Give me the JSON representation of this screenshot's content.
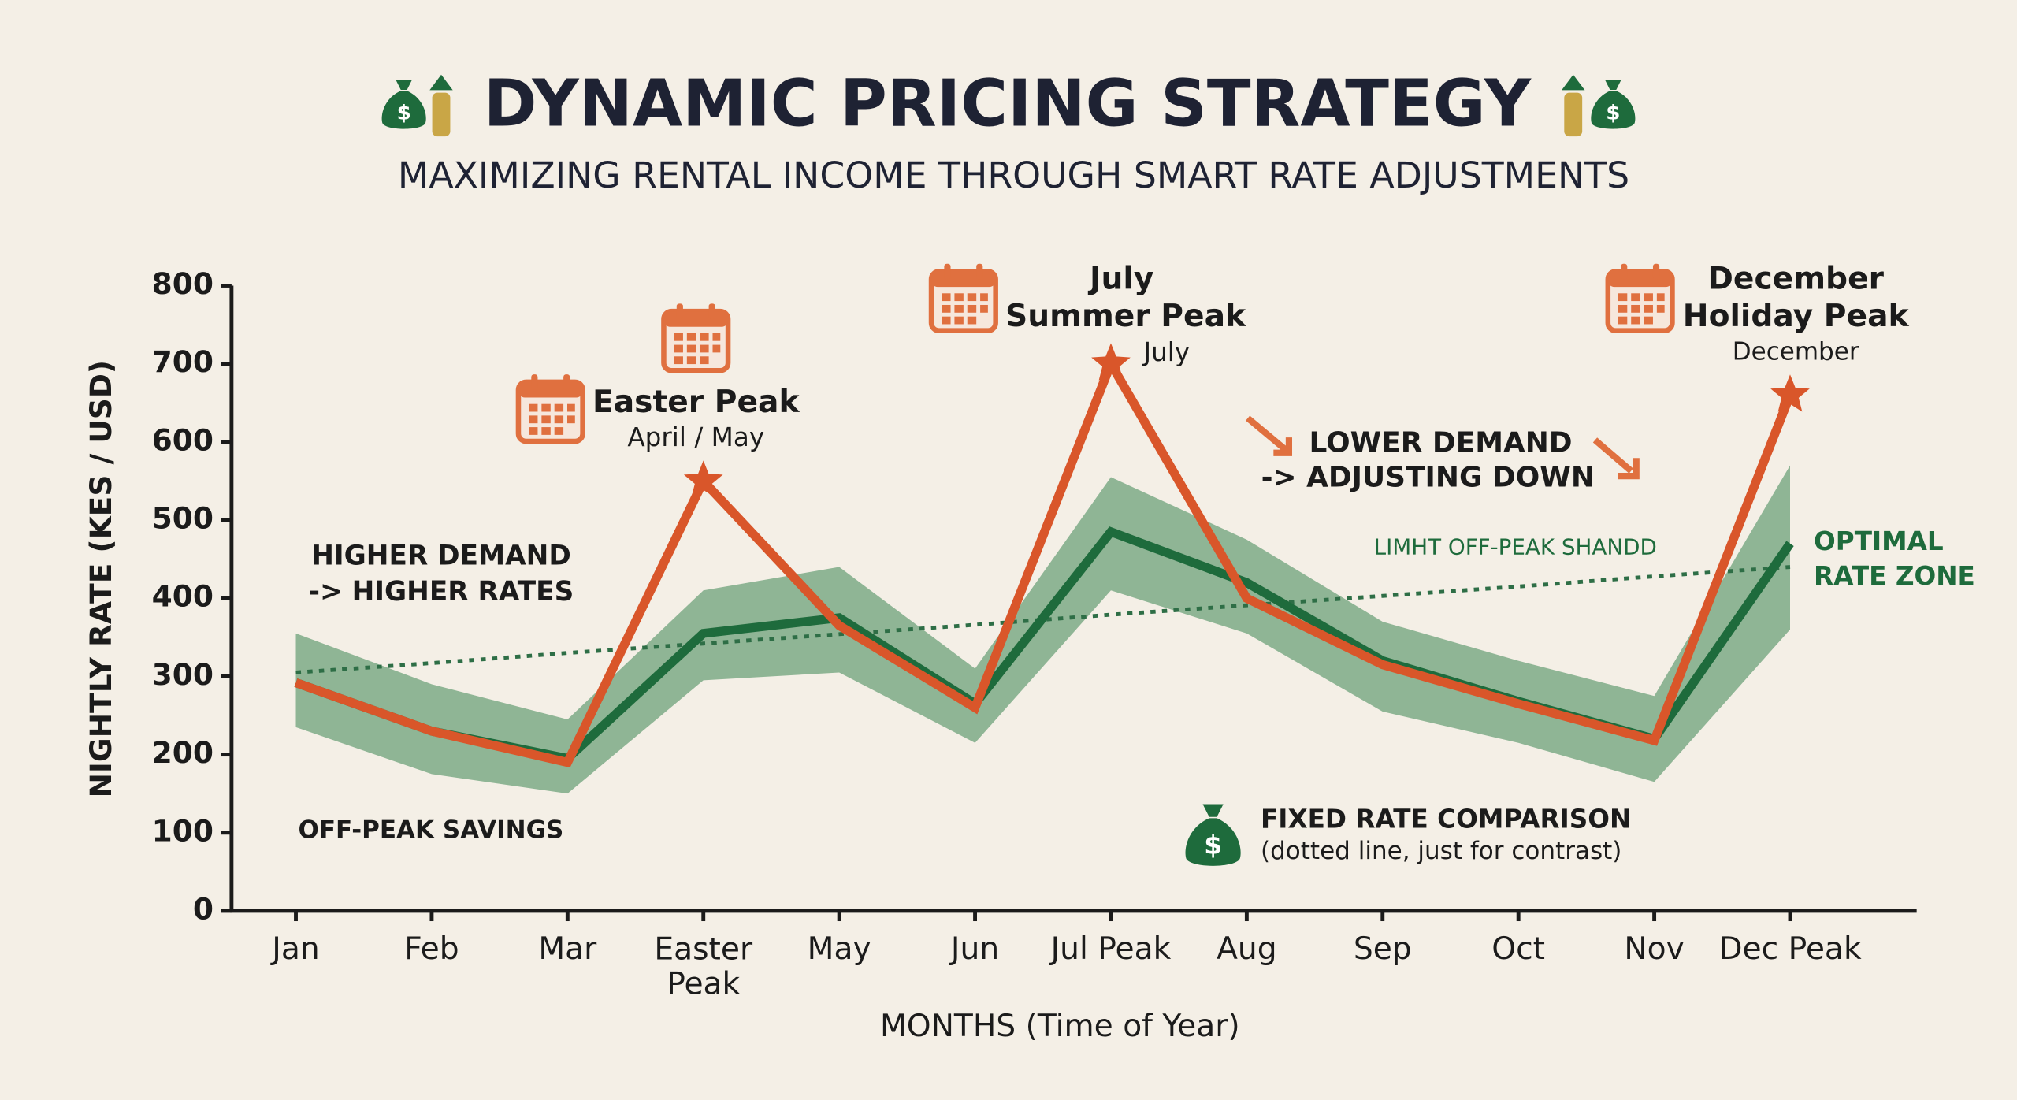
{
  "chart_data": {
    "type": "line",
    "title": "DYNAMIC PRICING STRATEGY",
    "subtitle": "MAXIMIZING RENTAL INCOME THROUGH SMART RATE ADJUSTMENTS",
    "x_label": "MONTHS (Time of Year)",
    "y_label": "NIGHTLY RATE (KES / USD)",
    "categories": [
      "Jan",
      "Feb",
      "Mar",
      "Easter Peak",
      "May",
      "Jun",
      "Jul Peak",
      "Aug",
      "Sep",
      "Oct",
      "Nov",
      "Dec Peak"
    ],
    "ylim": [
      0,
      800
    ],
    "yticks": [
      0,
      100,
      200,
      300,
      400,
      500,
      600,
      700,
      800
    ],
    "band": {
      "color": "#8fb595",
      "upper": [
        355,
        290,
        245,
        410,
        440,
        310,
        555,
        475,
        370,
        320,
        275,
        570
      ],
      "lower": [
        235,
        175,
        150,
        295,
        305,
        215,
        410,
        355,
        255,
        215,
        165,
        360
      ]
    },
    "series": [
      {
        "color": "#2e6e46",
        "style": "dotted",
        "values": [
          305,
          317,
          330,
          342,
          354,
          366,
          379,
          391,
          403,
          415,
          428,
          440
        ]
      },
      {
        "color": "#1e6b3c",
        "style": "solid",
        "values": [
          292,
          230,
          195,
          355,
          375,
          265,
          485,
          420,
          320,
          268,
          220,
          470
        ]
      },
      {
        "color": "#d9562a",
        "style": "solid",
        "values": [
          292,
          230,
          190,
          550,
          365,
          260,
          700,
          400,
          315,
          265,
          218,
          660
        ]
      }
    ],
    "annotations": [
      "Easter Peak",
      "April / May",
      "July",
      "Summer Peak",
      "July",
      "December",
      "Holiday Peak",
      "December",
      "LOWER DEMAND",
      "-> ADJUSTING DOWN",
      "HIGHER DEMAND",
      "-> HIGHER RATES",
      "LIMHT OFF-PEAK SHANDD",
      "OPTIMAL",
      "RATE ZONE",
      "OFF-PEAK SAVINGS",
      "FIXED RATE COMPARISON",
      "(dotted line, just for contrast)"
    ]
  }
}
